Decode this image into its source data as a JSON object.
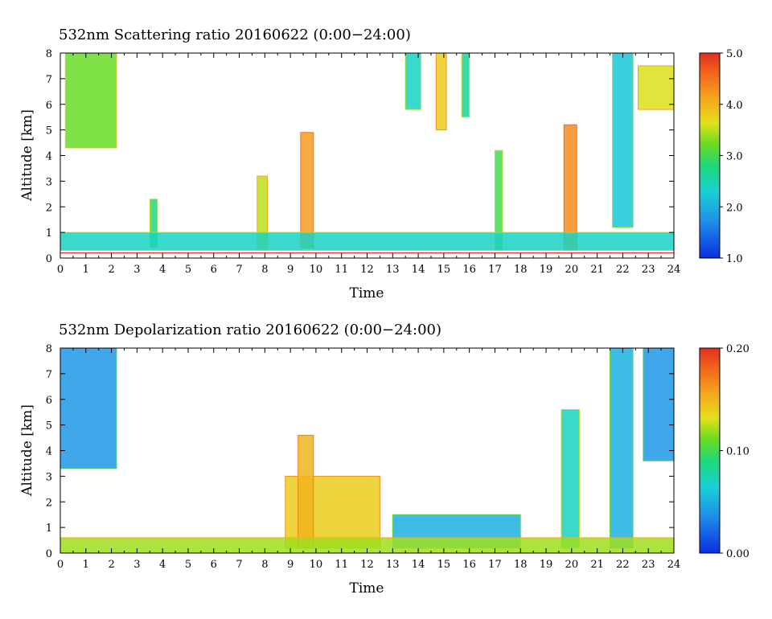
{
  "chart_data": [
    {
      "type": "heatmap",
      "title": "532nm Scattering ratio  20160622 (0:00−24:00)",
      "xlabel": "Time",
      "ylabel": "Altitude [km]",
      "xlim": [
        0,
        24
      ],
      "ylim": [
        0,
        8
      ],
      "x_ticks": [
        "0",
        "1",
        "2",
        "3",
        "4",
        "5",
        "6",
        "7",
        "8",
        "9",
        "10",
        "11",
        "12",
        "13",
        "14",
        "15",
        "16",
        "17",
        "18",
        "19",
        "20",
        "21",
        "22",
        "23",
        "24"
      ],
      "y_ticks": [
        "0",
        "1",
        "2",
        "3",
        "4",
        "5",
        "6",
        "7",
        "8"
      ],
      "colorbar": {
        "min": 1.0,
        "max": 5.0,
        "labels": [
          "1.0",
          "2.0",
          "3.0",
          "4.0",
          "5.0"
        ],
        "values": [
          1.0,
          2.0,
          3.0,
          4.0,
          5.0
        ]
      },
      "reference_line": {
        "altitude_km": 0.2,
        "color": "#e0301e"
      },
      "features": [
        {
          "x0": 0.2,
          "x1": 2.2,
          "bottom_km": 4.3,
          "top_km": 8.0,
          "value": 3.2
        },
        {
          "x0": 22.6,
          "x1": 24.0,
          "bottom_km": 5.8,
          "top_km": 7.5,
          "value": 3.6
        },
        {
          "x0": 13.5,
          "x1": 14.1,
          "bottom_km": 5.8,
          "top_km": 8.0,
          "value": 2.4
        },
        {
          "x0": 14.7,
          "x1": 15.1,
          "bottom_km": 5.0,
          "top_km": 8.0,
          "value": 3.8
        },
        {
          "x0": 15.7,
          "x1": 16.0,
          "bottom_km": 5.5,
          "top_km": 8.0,
          "value": 2.6
        },
        {
          "x0": 21.6,
          "x1": 22.4,
          "bottom_km": 1.2,
          "top_km": 8.0,
          "value": 2.2
        },
        {
          "x0": 9.4,
          "x1": 9.9,
          "bottom_km": 0.4,
          "top_km": 4.9,
          "value": 4.2
        },
        {
          "x0": 19.7,
          "x1": 20.2,
          "bottom_km": 0.3,
          "top_km": 5.2,
          "value": 4.3
        },
        {
          "x0": 17.0,
          "x1": 17.3,
          "bottom_km": 0.3,
          "top_km": 4.2,
          "value": 3.0
        },
        {
          "x0": 7.7,
          "x1": 8.1,
          "bottom_km": 0.3,
          "top_km": 3.2,
          "value": 3.5
        },
        {
          "x0": 3.5,
          "x1": 3.8,
          "bottom_km": 0.4,
          "top_km": 2.3,
          "value": 2.8
        },
        {
          "x0": 0.0,
          "x1": 24.0,
          "bottom_km": 0.3,
          "top_km": 1.0,
          "value": 2.4
        }
      ]
    },
    {
      "type": "heatmap",
      "title": "532nm Depolarization ratio  20160622 (0:00−24:00)",
      "xlabel": "Time",
      "ylabel": "Altitude [km]",
      "xlim": [
        0,
        24
      ],
      "ylim": [
        0,
        8
      ],
      "x_ticks": [
        "0",
        "1",
        "2",
        "3",
        "4",
        "5",
        "6",
        "7",
        "8",
        "9",
        "10",
        "11",
        "12",
        "13",
        "14",
        "15",
        "16",
        "17",
        "18",
        "19",
        "20",
        "21",
        "22",
        "23",
        "24"
      ],
      "y_ticks": [
        "0",
        "1",
        "2",
        "3",
        "4",
        "5",
        "6",
        "7",
        "8"
      ],
      "colorbar": {
        "min": 0.0,
        "max": 0.2,
        "labels": [
          "0.00",
          "0.10",
          "0.20"
        ],
        "values": [
          0.0,
          0.1,
          0.2
        ]
      },
      "features": [
        {
          "x0": 0.0,
          "x1": 2.2,
          "bottom_km": 3.3,
          "top_km": 8.0,
          "value": 0.04
        },
        {
          "x0": 22.8,
          "x1": 24.0,
          "bottom_km": 3.6,
          "top_km": 8.0,
          "value": 0.04
        },
        {
          "x0": 21.5,
          "x1": 22.4,
          "bottom_km": 0.2,
          "top_km": 8.0,
          "value": 0.05
        },
        {
          "x0": 13.0,
          "x1": 18.0,
          "bottom_km": 0.2,
          "top_km": 1.5,
          "value": 0.05
        },
        {
          "x0": 8.8,
          "x1": 12.5,
          "bottom_km": 0.2,
          "top_km": 3.0,
          "value": 0.14
        },
        {
          "x0": 9.3,
          "x1": 9.9,
          "bottom_km": 0.2,
          "top_km": 4.6,
          "value": 0.15
        },
        {
          "x0": 19.6,
          "x1": 20.3,
          "bottom_km": 0.2,
          "top_km": 5.6,
          "value": 0.07
        },
        {
          "x0": 0.0,
          "x1": 24.0,
          "bottom_km": 0.0,
          "top_km": 0.6,
          "value": 0.12
        }
      ]
    }
  ]
}
